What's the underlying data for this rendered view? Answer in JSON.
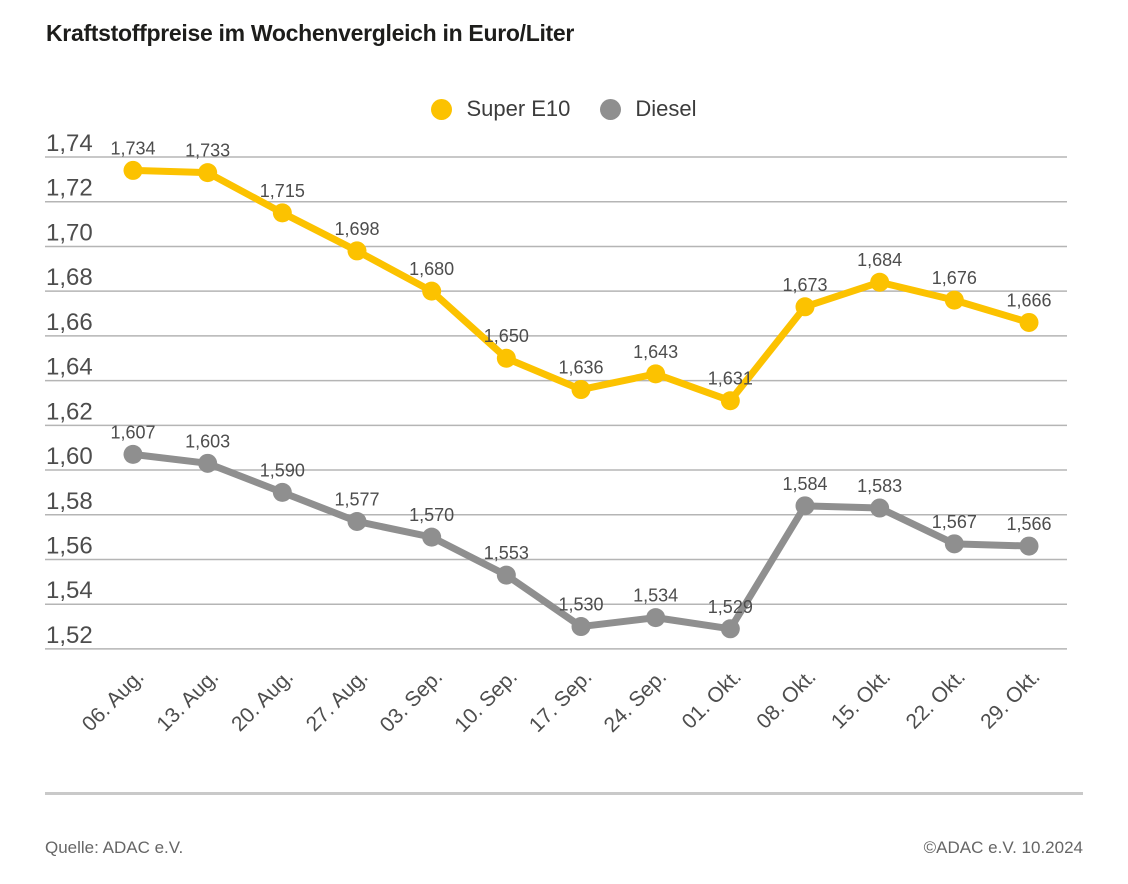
{
  "title": "Kraftstoffpreise im Wochenvergleich in Euro/Liter",
  "footer": {
    "source": "Quelle: ADAC e.V.",
    "copyright": "©ADAC e.V. 10.2024"
  },
  "chart_data": {
    "type": "line",
    "title": "Kraftstoffpreise im Wochenvergleich in Euro/Liter",
    "xlabel": "",
    "ylabel": "Euro/Liter",
    "ylim": [
      1.52,
      1.74
    ],
    "grid": true,
    "grid_color": "#b5b5b5",
    "legend_position": "top-center",
    "categories": [
      "06. Aug.",
      "13. Aug.",
      "20. Aug.",
      "27. Aug.",
      "03. Sep.",
      "10. Sep.",
      "17. Sep.",
      "24. Sep.",
      "01. Okt.",
      "08. Okt.",
      "15. Okt.",
      "22. Okt.",
      "29. Okt."
    ],
    "yticks": [
      {
        "value": 1.74,
        "label": "1,74"
      },
      {
        "value": 1.72,
        "label": "1,72"
      },
      {
        "value": 1.7,
        "label": "1,70"
      },
      {
        "value": 1.68,
        "label": "1,68"
      },
      {
        "value": 1.66,
        "label": "1,66"
      },
      {
        "value": 1.64,
        "label": "1,64"
      },
      {
        "value": 1.62,
        "label": "1,62"
      },
      {
        "value": 1.6,
        "label": "1,60"
      },
      {
        "value": 1.58,
        "label": "1,58"
      },
      {
        "value": 1.56,
        "label": "1,56"
      },
      {
        "value": 1.54,
        "label": "1,54"
      },
      {
        "value": 1.52,
        "label": "1,52"
      }
    ],
    "series": [
      {
        "name": "Super E10",
        "color": "#fcc200",
        "values": [
          1.734,
          1.733,
          1.715,
          1.698,
          1.68,
          1.65,
          1.636,
          1.643,
          1.631,
          1.673,
          1.684,
          1.676,
          1.666
        ],
        "labels": [
          "1,734",
          "1,733",
          "1,715",
          "1,698",
          "1,680",
          "1,650",
          "1,636",
          "1,643",
          "1,631",
          "1,673",
          "1,684",
          "1,676",
          "1,666"
        ]
      },
      {
        "name": "Diesel",
        "color": "#8f8f8f",
        "values": [
          1.607,
          1.603,
          1.59,
          1.577,
          1.57,
          1.553,
          1.53,
          1.534,
          1.529,
          1.584,
          1.583,
          1.567,
          1.566
        ],
        "labels": [
          "1,607",
          "1,603",
          "1,590",
          "1,577",
          "1,570",
          "1,553",
          "1,530",
          "1,534",
          "1,529",
          "1,584",
          "1,583",
          "1,567",
          "1,566"
        ]
      }
    ]
  }
}
